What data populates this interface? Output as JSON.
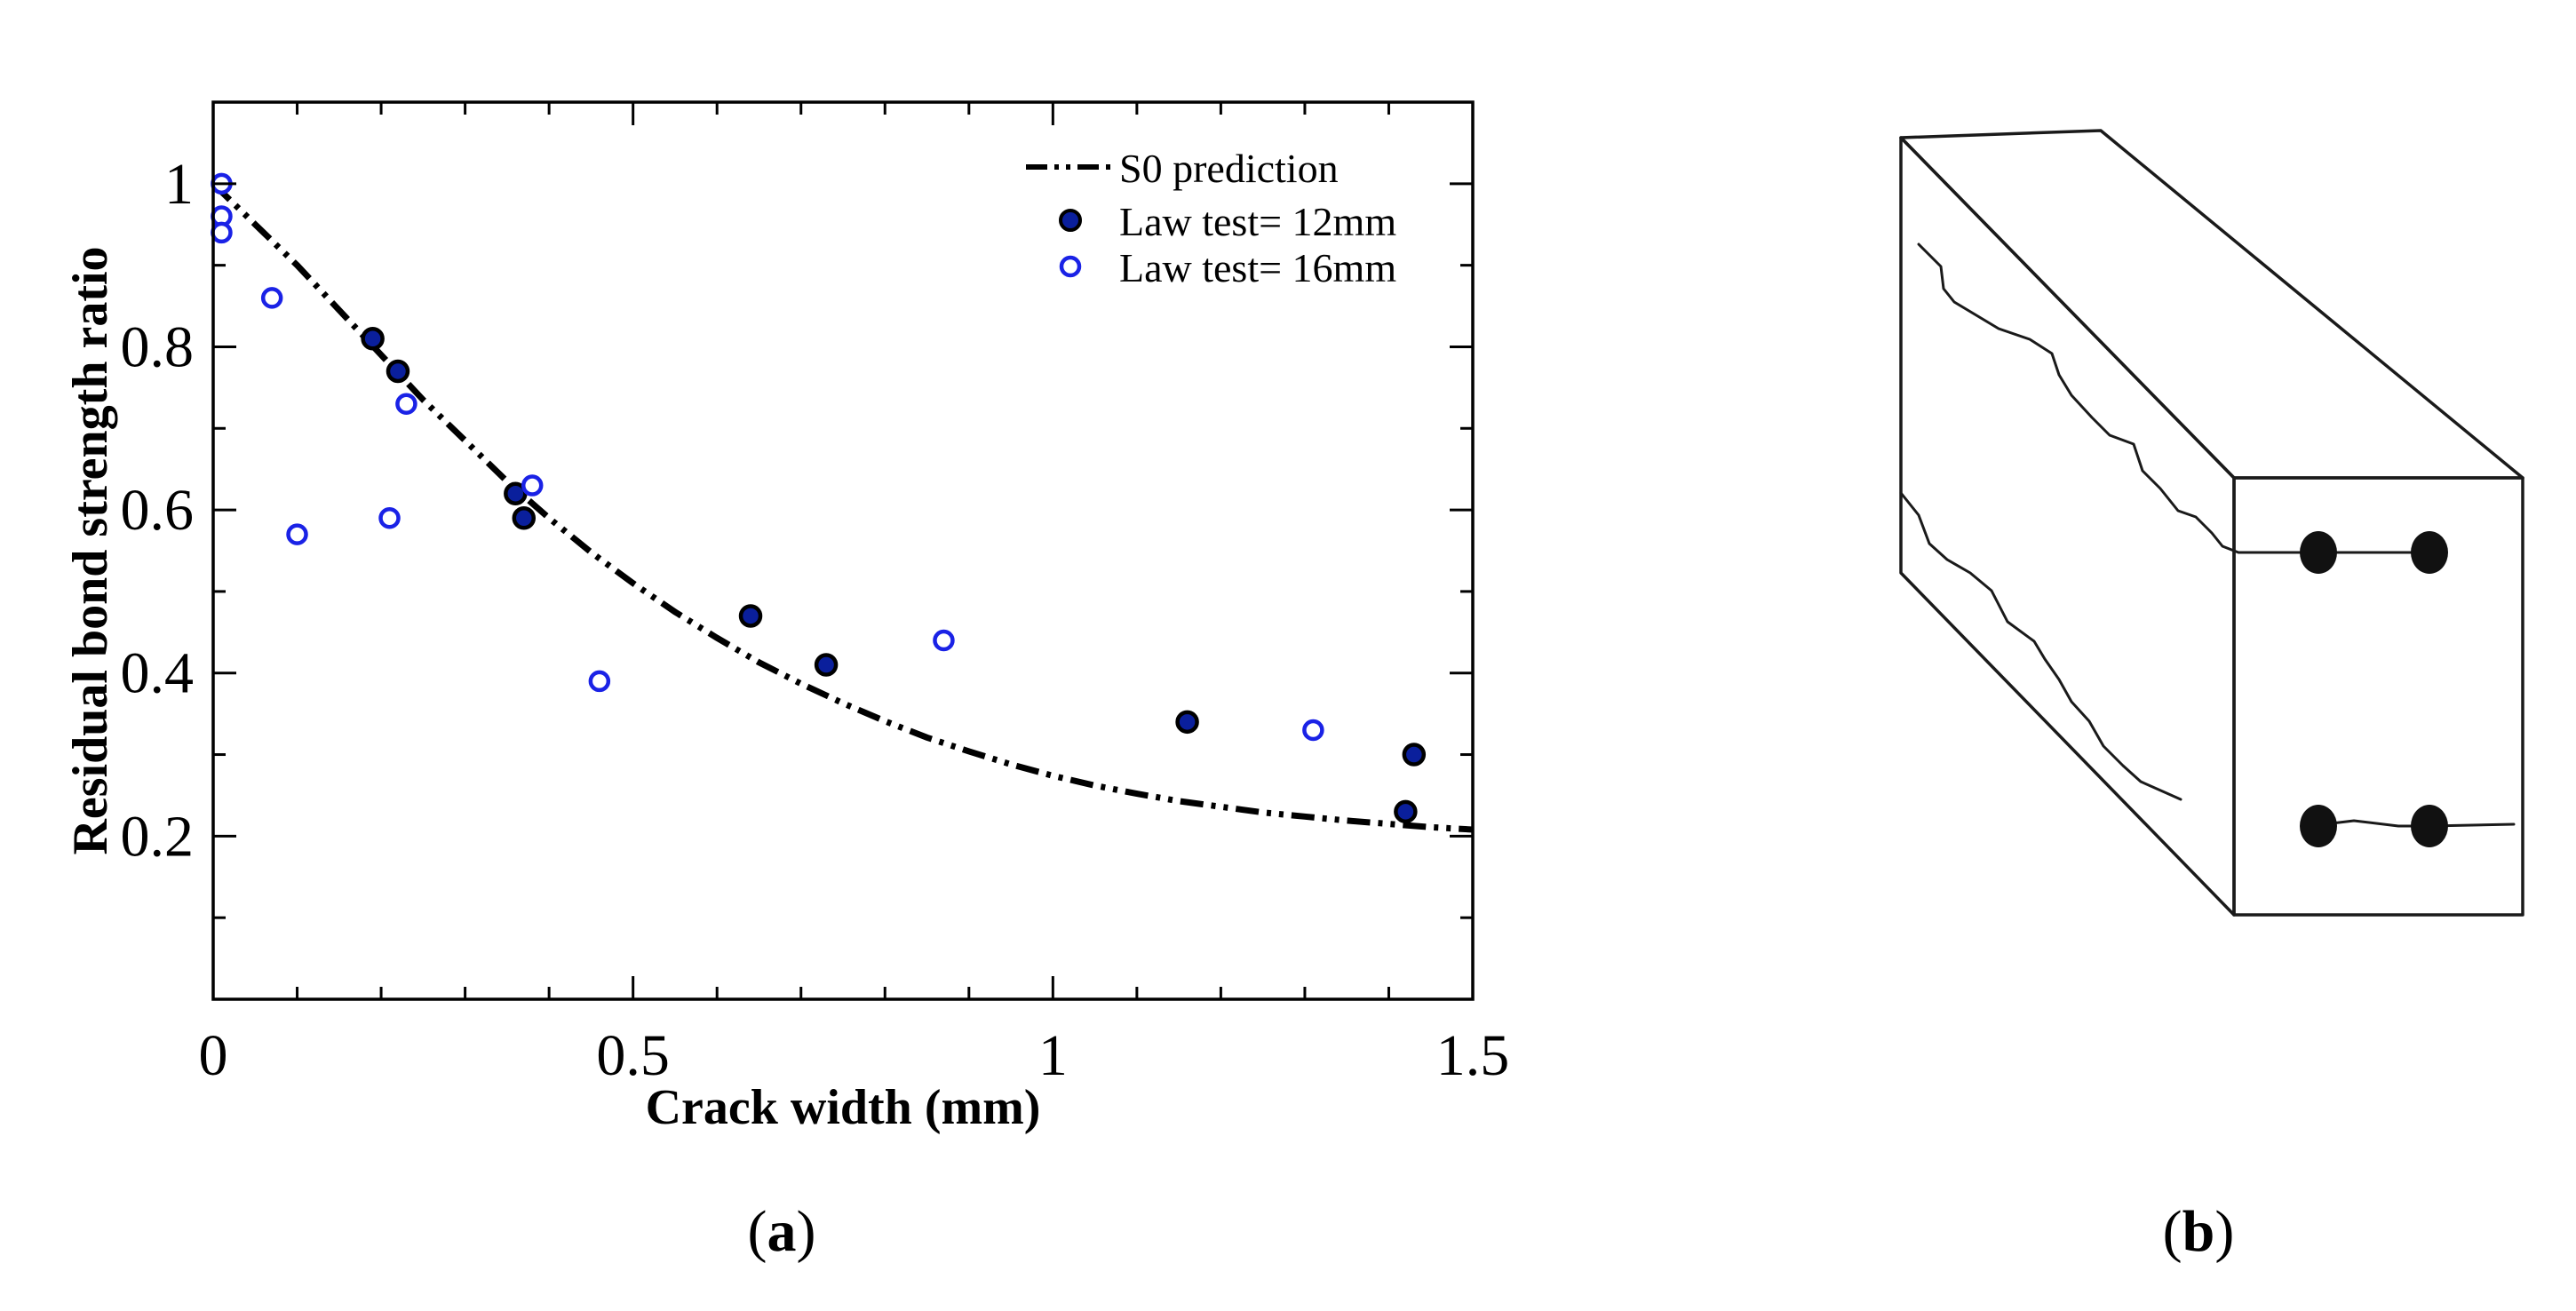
{
  "chart_data": {
    "type": "scatter",
    "xlabel": "Crack width (mm)",
    "ylabel": "Residual bond strength ratio",
    "xlim": [
      0,
      1.5
    ],
    "ylim": [
      0,
      1.1
    ],
    "xticks": [
      0,
      0.5,
      1,
      1.5
    ],
    "xtick_labels": [
      "0",
      "0.5",
      "1",
      "1.5"
    ],
    "yticks": [
      0.2,
      0.4,
      0.6,
      0.8,
      1
    ],
    "ytick_labels": [
      "0.2",
      "0.4",
      "0.6",
      "0.8",
      "1"
    ],
    "legend_position": "top-right",
    "series": [
      {
        "name": "S0 prediction",
        "kind": "line",
        "style": "dash-dot",
        "color": "#000000",
        "x": [
          0,
          0.05,
          0.1,
          0.15,
          0.2,
          0.25,
          0.3,
          0.35,
          0.4,
          0.45,
          0.5,
          0.55,
          0.6,
          0.65,
          0.7,
          0.75,
          0.8,
          0.85,
          0.9,
          0.95,
          1.0,
          1.05,
          1.1,
          1.15,
          1.2,
          1.25,
          1.3,
          1.35,
          1.4,
          1.45,
          1.5
        ],
        "y": [
          1.0,
          0.95,
          0.9,
          0.845,
          0.79,
          0.735,
          0.685,
          0.635,
          0.59,
          0.548,
          0.51,
          0.475,
          0.443,
          0.413,
          0.387,
          0.363,
          0.341,
          0.321,
          0.304,
          0.288,
          0.274,
          0.262,
          0.252,
          0.243,
          0.236,
          0.229,
          0.224,
          0.219,
          0.215,
          0.211,
          0.208
        ]
      },
      {
        "name": "Law test= 12mm",
        "kind": "marker",
        "marker": "filled-circle",
        "color": "#0a1f9c",
        "edge_color": "#000000",
        "x": [
          0.19,
          0.22,
          0.36,
          0.37,
          0.64,
          0.73,
          1.16,
          1.42,
          1.43
        ],
        "y": [
          0.81,
          0.77,
          0.62,
          0.59,
          0.47,
          0.41,
          0.34,
          0.23,
          0.3
        ]
      },
      {
        "name": "Law test= 16mm",
        "kind": "marker",
        "marker": "open-circle",
        "color": "#1a22e6",
        "x": [
          0.01,
          0.01,
          0.01,
          0.07,
          0.1,
          0.21,
          0.23,
          0.38,
          0.46,
          0.87,
          1.31
        ],
        "y": [
          1.0,
          0.96,
          0.94,
          0.86,
          0.57,
          0.59,
          0.73,
          0.63,
          0.39,
          0.44,
          0.33
        ]
      }
    ]
  },
  "panels": {
    "a": {
      "open": "(",
      "letter": "a",
      "close": ")"
    },
    "b": {
      "open": "(",
      "letter": "b",
      "close": ")"
    }
  },
  "colors": {
    "axis": "#000000",
    "drawing": "#1a1a1a"
  }
}
